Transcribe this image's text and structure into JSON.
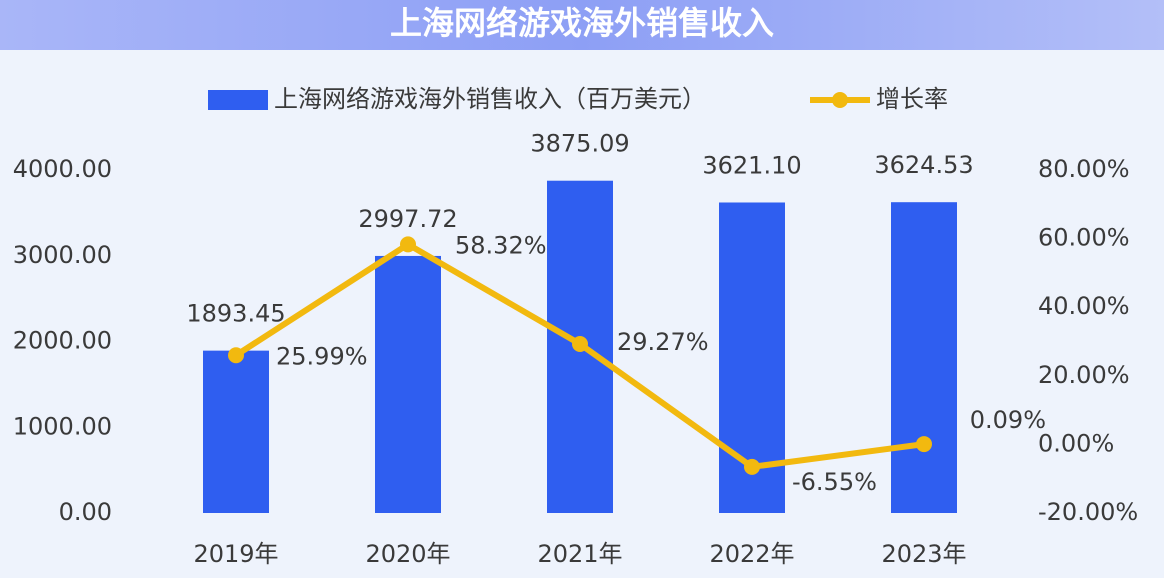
{
  "chart_data": {
    "type": "bar-line",
    "title": "上海网络游戏海外销售收入",
    "categories": [
      "2019年",
      "2020年",
      "2021年",
      "2022年",
      "2023年"
    ],
    "series": [
      {
        "name": "上海网络游戏海外销售收入（百万美元）",
        "type": "bar",
        "color": "#2f5ef0",
        "values": [
          1893.45,
          2997.72,
          3875.09,
          3621.1,
          3624.53
        ],
        "value_labels": [
          "1893.45",
          "2997.72",
          "3875.09",
          "3621.10",
          "3624.53"
        ]
      },
      {
        "name": "增长率",
        "type": "line",
        "axis": "y2",
        "color": "#f2b90f",
        "values": [
          25.99,
          58.32,
          29.27,
          -6.55,
          0.09
        ],
        "value_labels": [
          "25.99%",
          "58.32%",
          "29.27%",
          "-6.55%",
          "0.09%"
        ]
      }
    ],
    "ylim": [
      0,
      4000
    ],
    "yticks": [
      {
        "value": 0,
        "label": "0.00"
      },
      {
        "value": 1000,
        "label": "1000.00"
      },
      {
        "value": 2000,
        "label": "2000.00"
      },
      {
        "value": 3000,
        "label": "3000.00"
      },
      {
        "value": 4000,
        "label": "4000.00"
      }
    ],
    "y2lim": [
      -20,
      80
    ],
    "y2ticks": [
      {
        "value": -20,
        "label": "-20.00%"
      },
      {
        "value": 0,
        "label": "0.00%"
      },
      {
        "value": 20,
        "label": "20.00%"
      },
      {
        "value": 40,
        "label": "40.00%"
      },
      {
        "value": 60,
        "label": "60.00%"
      },
      {
        "value": 80,
        "label": "80.00%"
      }
    ],
    "legend": "top"
  }
}
